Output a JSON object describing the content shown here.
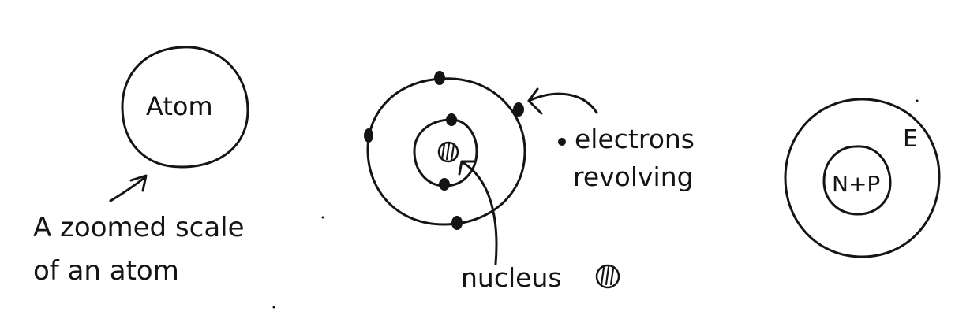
{
  "atom_sketch": {
    "circle_label": "Atom",
    "caption_line1": "A zoomed scale",
    "caption_line2": "of an atom"
  },
  "bohr_sketch": {
    "electrons_label_line1": "electrons",
    "electrons_label_line2": "revolving",
    "nucleus_label": "nucleus"
  },
  "nucleus_sketch": {
    "nucleus_label": "N+P",
    "electron_symbol": "E"
  },
  "colors": {
    "ink": "#141414",
    "paper": "#ffffff"
  }
}
